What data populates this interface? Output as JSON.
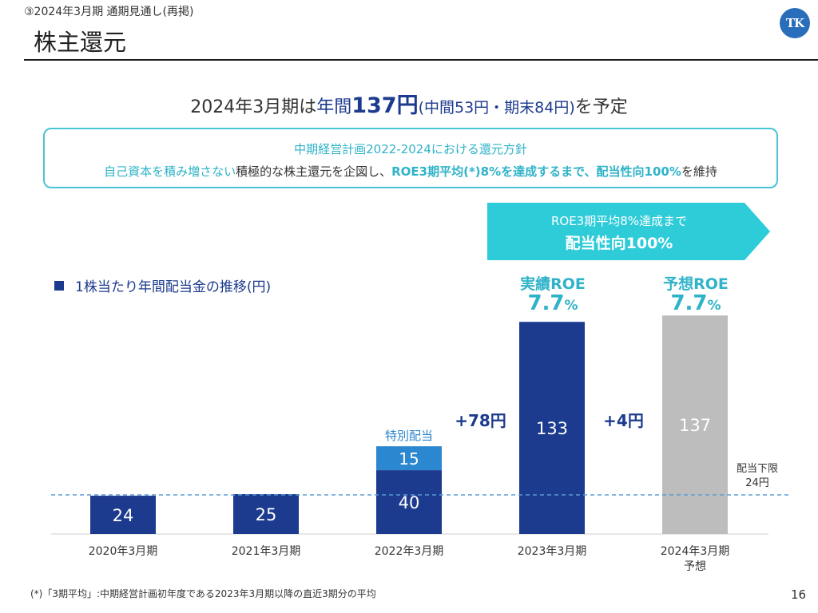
{
  "header": {
    "section_label": "③2024年3月期 通期見通し(再掲)",
    "title": "株主還元",
    "logo_text": "TK"
  },
  "headline": {
    "part1": "2024年3月期は",
    "part2": "年間",
    "part3": "137円",
    "part4": "(中間53円・期末84円)",
    "part5": "を予定"
  },
  "policy": {
    "title": "中期経営計画2022-2024における還元方針",
    "seg1": "自己資本を積み増さない",
    "seg2": "積極的な株主還元を企図し、",
    "seg3": "ROE3期平均(*)8%を達成するまで、配当性向100%",
    "seg4": "を維持"
  },
  "arrow_banner": {
    "line1": "ROE3期平均8%達成まで",
    "line2": "配当性向100%",
    "color": "#2ecbd8"
  },
  "roe": {
    "actual_label": "実績ROE",
    "actual_value": "7.7",
    "forecast_label": "予想ROE",
    "forecast_value": "7.7",
    "unit": "%"
  },
  "chart_data": {
    "type": "bar",
    "title": "1株当たり年間配当金の推移(円)",
    "categories": [
      "2020年3月期",
      "2021年3月期",
      "2022年3月期",
      "2023年3月期",
      "2024年3月期"
    ],
    "category_sublabels": [
      "",
      "",
      "",
      "",
      "予想"
    ],
    "series": [
      {
        "name": "",
        "values": [
          24,
          25,
          40,
          133,
          137
        ],
        "colors": [
          "#1c3a8e",
          "#1c3a8e",
          "#1c3a8e",
          "#1c3a8e",
          "#bdbdbd"
        ]
      },
      {
        "name": "特別配当",
        "values": [
          0,
          0,
          15,
          0,
          0
        ],
        "color": "#2b87cf"
      }
    ],
    "stack_label": "特別配当",
    "changes": [
      {
        "label": "+78円",
        "between": [
          2,
          3
        ]
      },
      {
        "label": "+4円",
        "between": [
          3,
          4
        ]
      }
    ],
    "reference_line": {
      "value": 24,
      "label_line1": "配当下限",
      "label_line2": "24円"
    },
    "ylim": [
      0,
      160
    ],
    "colors": {
      "primary": "#1c3a8e",
      "special": "#2b87cf",
      "forecast": "#bdbdbd",
      "accent": "#2fb3c8"
    }
  },
  "footnote": "(*)「3期平均」:中期経営計画初年度である2023年3月期以降の直近3期分の平均",
  "page_number": "16"
}
